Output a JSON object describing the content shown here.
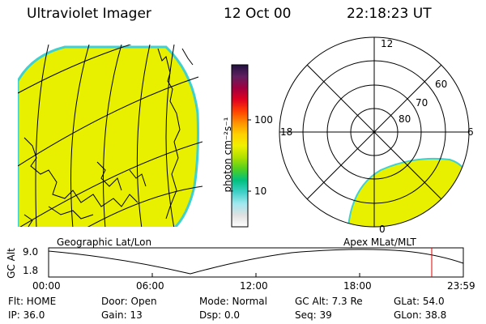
{
  "header": {
    "title": "Ultraviolet Imager",
    "date": "12 Oct 00",
    "time": "22:18:23 UT"
  },
  "colorbar": {
    "unit": "photon cm⁻²s⁻¹",
    "tick_100": "100",
    "tick_10": "10",
    "gradient": [
      "#ffffff",
      "#e0e0e0",
      "#a0e8f0",
      "#40d0c8",
      "#00c080",
      "#50d020",
      "#b0e000",
      "#f0f000",
      "#ffd000",
      "#ff9000",
      "#ff4000",
      "#e00020",
      "#a00040",
      "#602060",
      "#201040"
    ]
  },
  "geo_map": {
    "label": "Geographic Lat/Lon",
    "fill_color": "#e8f000",
    "edge_color": "#40d0d0"
  },
  "polar_plot": {
    "label": "Apex MLat/MLT",
    "mlt_12": "12",
    "mlt_18": "18",
    "mlt_6": "6",
    "mlt_0": "0",
    "lat_60": "60",
    "lat_70": "70",
    "lat_80": "80"
  },
  "altitude_plot": {
    "ylabel": "GC Alt",
    "ymax": "9.0",
    "ymin": "1.8",
    "xticks": [
      "00:00",
      "06:00",
      "12:00",
      "18:00",
      "23:59"
    ],
    "marker_color": "#e00000"
  },
  "info": {
    "flt": "Flt: HOME",
    "ip": "IP: 36.0",
    "door": "Door: Open",
    "gain": "Gain: 13",
    "mode": "Mode: Normal",
    "dsp": "Dsp:      0.0",
    "gcalt": "GC Alt: 7.3 Re",
    "seq": "Seq: 39",
    "glat": "GLat:   54.0",
    "glon": "GLon:   38.8"
  }
}
